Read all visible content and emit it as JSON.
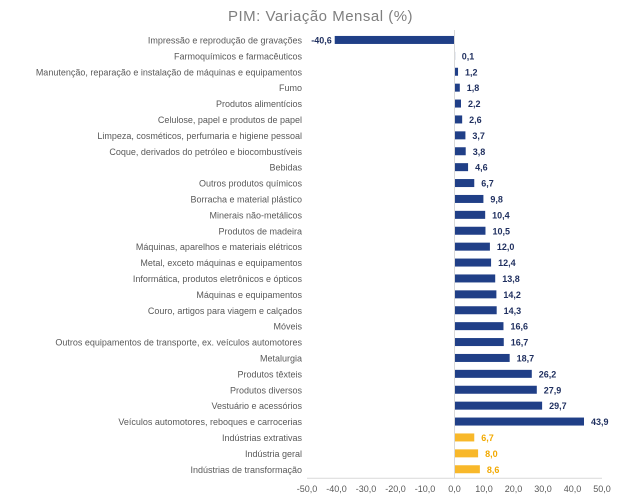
{
  "chart_data": {
    "type": "bar",
    "orientation": "horizontal",
    "title": "PIM: Variação Mensal (%)",
    "categories": [
      "Impressão e reprodução de gravações",
      "Farmoquímicos e farmacêuticos",
      "Manutenção, reparação e instalação de máquinas e equipamentos",
      "Fumo",
      "Produtos alimentícios",
      "Celulose, papel e produtos de papel",
      "Limpeza, cosméticos, perfumaria e higiene pessoal",
      "Coque, derivados do petróleo e biocombustíveis",
      "Bebidas",
      "Outros produtos químicos",
      "Borracha e material plástico",
      "Minerais não-metálicos",
      "Produtos de madeira",
      "Máquinas, aparelhos e materiais elétricos",
      "Metal, exceto máquinas e equipamentos",
      "Informática, produtos eletrônicos e ópticos",
      "Máquinas e equipamentos",
      "Couro, artigos para viagem e calçados",
      "Móveis",
      "Outros equipamentos de transporte, ex. veículos automotores",
      "Metalurgia",
      "Produtos têxteis",
      "Produtos diversos",
      "Vestuário e acessórios",
      "Veículos automotores, reboques e carrocerias",
      "Indústrias extrativas",
      "Indústria geral",
      "Indústrias de transformação"
    ],
    "values": [
      -40.6,
      0.1,
      1.2,
      1.8,
      2.2,
      2.6,
      3.7,
      3.8,
      4.6,
      6.7,
      9.8,
      10.4,
      10.5,
      12.0,
      12.4,
      13.8,
      14.2,
      14.3,
      16.6,
      16.7,
      18.7,
      26.2,
      27.9,
      29.7,
      43.9,
      6.7,
      8.0,
      8.6
    ],
    "value_labels": [
      "-40,6",
      "0,1",
      "1,2",
      "1,8",
      "2,2",
      "2,6",
      "3,7",
      "3,8",
      "4,6",
      "6,7",
      "9,8",
      "10,4",
      "10,5",
      "12,0",
      "12,4",
      "13,8",
      "14,2",
      "14,3",
      "16,6",
      "16,7",
      "18,7",
      "26,2",
      "27,9",
      "29,7",
      "43,9",
      "6,7",
      "8,0",
      "8,6"
    ],
    "highlight": [
      false,
      false,
      false,
      false,
      false,
      false,
      false,
      false,
      false,
      false,
      false,
      false,
      false,
      false,
      false,
      false,
      false,
      false,
      false,
      false,
      false,
      false,
      false,
      false,
      false,
      true,
      true,
      true
    ],
    "xlim": [
      -50,
      50
    ],
    "x_ticks": [
      -50,
      -40,
      -30,
      -20,
      -10,
      0,
      10,
      20,
      30,
      40,
      50
    ],
    "x_tick_labels": [
      "-50,0",
      "-40,0",
      "-30,0",
      "-20,0",
      "-10,0",
      "0,0",
      "10,0",
      "20,0",
      "30,0",
      "40,0",
      "50,0"
    ],
    "grid": false,
    "legend": "none",
    "colors": {
      "bar": "#203f87",
      "highlight_bar": "#f8b82a",
      "value_label": "#1f2f5f",
      "highlight_label": "#f2a900",
      "category_label": "#595959",
      "tick_label": "#595959",
      "axis": "#d9d9d9",
      "title": "#7f7f7f"
    }
  }
}
